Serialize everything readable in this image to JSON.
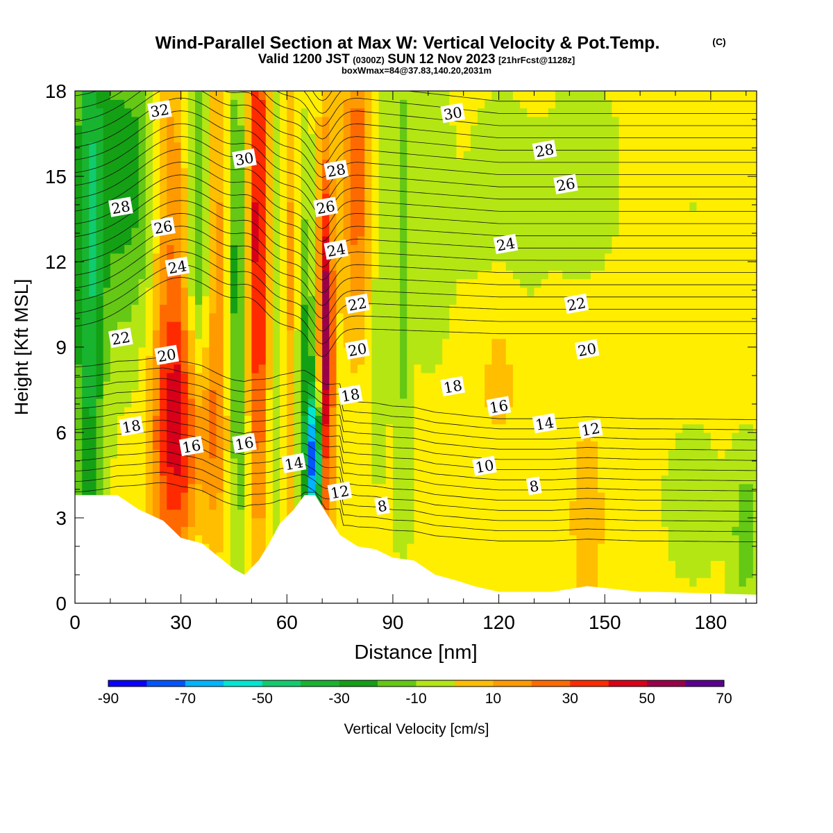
{
  "header": {
    "title": "Wind-Parallel Section at Max W: Vertical Velocity & Pot.Temp.",
    "title_mark": "(C)",
    "valid_prefix": "Valid 1200 JST",
    "valid_utc": "(0300Z)",
    "valid_date": "SUN 12 Nov 2023",
    "valid_fcst": "[21hrFcst@1128z]",
    "box_info": "boxWmax=84@37.83,140.20,2031m"
  },
  "colorbar": {
    "label": "Vertical Velocity [cm/s]",
    "levels": [
      -90,
      -80,
      -70,
      -60,
      -50,
      -40,
      -30,
      -20,
      -10,
      0,
      10,
      20,
      30,
      40,
      50,
      60,
      70
    ],
    "tick_labels": [
      "-90",
      "-70",
      "-50",
      "-30",
      "-10",
      "10",
      "30",
      "50",
      "70"
    ],
    "colors": [
      "#0a00ff",
      "#0055ff",
      "#00b4ff",
      "#00e6d2",
      "#10cc6e",
      "#18b430",
      "#14a014",
      "#64c814",
      "#b4e614",
      "#ffee00",
      "#ffbe00",
      "#ff9a00",
      "#ff6a00",
      "#ff2a00",
      "#d80018",
      "#9a0048",
      "#5a0090"
    ]
  },
  "chart_data": {
    "type": "heatmap",
    "title": "Wind-Parallel Section at Max W: Vertical Velocity & Pot.Temp.",
    "xlabel": "Distance [nm]",
    "ylabel": "Height [Kft MSL]",
    "xlim": [
      0,
      193
    ],
    "ylim": [
      0,
      18
    ],
    "x_ticks": [
      0,
      30,
      60,
      90,
      120,
      150,
      180
    ],
    "y_ticks": [
      0,
      3,
      6,
      9,
      12,
      15,
      18
    ],
    "grid": false,
    "color_variable": "Vertical Velocity [cm/s]",
    "contour_variable": "Potential temperature",
    "terrain_profile": {
      "x": [
        0,
        12,
        18,
        25,
        30,
        36,
        42,
        45,
        48,
        52,
        55,
        58,
        62,
        65,
        68,
        72,
        75,
        80,
        85,
        90,
        96,
        102,
        108,
        113,
        120,
        135,
        145,
        160,
        165,
        193
      ],
      "y": [
        3.8,
        3.8,
        3.3,
        2.9,
        2.3,
        2.1,
        1.5,
        1.2,
        1.0,
        1.5,
        2.1,
        2.8,
        3.3,
        3.8,
        3.8,
        3.0,
        2.4,
        2.0,
        1.9,
        1.6,
        1.5,
        1.0,
        0.8,
        0.6,
        0.4,
        0.4,
        0.6,
        0.4,
        0.4,
        0.3
      ]
    },
    "w_features": [
      {
        "x": 4,
        "y": 12,
        "w": -40,
        "sx": 3,
        "sy": 9
      },
      {
        "x": 12,
        "y": 15,
        "w": -25,
        "sx": 5,
        "sy": 4
      },
      {
        "x": 20,
        "y": 15,
        "w": -15,
        "sx": 4,
        "sy": 5
      },
      {
        "x": 27,
        "y": 10,
        "w": 30,
        "sx": 4,
        "sy": 8
      },
      {
        "x": 33,
        "y": 6,
        "w": 38,
        "sx": 7,
        "sy": 2.8
      },
      {
        "x": 35,
        "y": 12,
        "w": -30,
        "sx": 2.5,
        "sy": 7
      },
      {
        "x": 40,
        "y": 14,
        "w": 22,
        "sx": 2.5,
        "sy": 6
      },
      {
        "x": 46,
        "y": 10,
        "w": -32,
        "sx": 2.2,
        "sy": 7
      },
      {
        "x": 52,
        "y": 13,
        "w": 55,
        "sx": 2.3,
        "sy": 7
      },
      {
        "x": 57,
        "y": 12,
        "w": -20,
        "sx": 2.2,
        "sy": 7
      },
      {
        "x": 61,
        "y": 11,
        "w": 25,
        "sx": 2,
        "sy": 7
      },
      {
        "x": 65,
        "y": 8,
        "w": -30,
        "sx": 2,
        "sy": 5
      },
      {
        "x": 68,
        "y": 5,
        "w": -80,
        "sx": 1.5,
        "sy": 1.8
      },
      {
        "x": 71,
        "y": 9,
        "w": 65,
        "sx": 1.6,
        "sy": 5
      },
      {
        "x": 80,
        "y": 15,
        "w": 35,
        "sx": 3,
        "sy": 4
      },
      {
        "x": 86,
        "y": 13,
        "w": -10,
        "sx": 2.5,
        "sy": 6
      },
      {
        "x": 93,
        "y": 12,
        "w": -15,
        "sx": 1.5,
        "sy": 8
      },
      {
        "x": 100,
        "y": 14,
        "w": -8,
        "sx": 4,
        "sy": 4
      },
      {
        "x": 120,
        "y": 13,
        "w": -5,
        "sx": 10,
        "sy": 5
      },
      {
        "x": 145,
        "y": 15,
        "w": -6,
        "sx": 8,
        "sy": 3
      },
      {
        "x": 175,
        "y": 14,
        "w": -3,
        "sx": 8,
        "sy": 3
      },
      {
        "x": 120,
        "y": 8,
        "w": 14,
        "sx": 4,
        "sy": 2
      },
      {
        "x": 145,
        "y": 3,
        "w": 12,
        "sx": 4,
        "sy": 3
      },
      {
        "x": 175,
        "y": 3.5,
        "w": -8,
        "sx": 6,
        "sy": 2
      },
      {
        "x": 190,
        "y": 2.5,
        "w": -20,
        "sx": 3,
        "sy": 2
      }
    ],
    "theta_levels": [
      8,
      10,
      12,
      14,
      16,
      18,
      20,
      22,
      24,
      26,
      28,
      30,
      32
    ],
    "theta_labels": [
      {
        "text": "32",
        "x": 24,
        "y": 17.3
      },
      {
        "text": "30",
        "x": 48,
        "y": 15.6
      },
      {
        "text": "30",
        "x": 107,
        "y": 17.2
      },
      {
        "text": "28",
        "x": 13,
        "y": 13.9
      },
      {
        "text": "28",
        "x": 74,
        "y": 15.2
      },
      {
        "text": "28",
        "x": 133,
        "y": 15.9
      },
      {
        "text": "26",
        "x": 25,
        "y": 13.2
      },
      {
        "text": "26",
        "x": 71,
        "y": 13.9
      },
      {
        "text": "26",
        "x": 139,
        "y": 14.7
      },
      {
        "text": "24",
        "x": 29,
        "y": 11.8
      },
      {
        "text": "24",
        "x": 74,
        "y": 12.4
      },
      {
        "text": "24",
        "x": 122,
        "y": 12.6
      },
      {
        "text": "22",
        "x": 13,
        "y": 9.3
      },
      {
        "text": "22",
        "x": 80,
        "y": 10.5
      },
      {
        "text": "22",
        "x": 142,
        "y": 10.5
      },
      {
        "text": "20",
        "x": 26,
        "y": 8.7
      },
      {
        "text": "20",
        "x": 80,
        "y": 8.9
      },
      {
        "text": "20",
        "x": 145,
        "y": 8.9
      },
      {
        "text": "18",
        "x": 16,
        "y": 6.2
      },
      {
        "text": "18",
        "x": 78,
        "y": 7.3
      },
      {
        "text": "18",
        "x": 107,
        "y": 7.6
      },
      {
        "text": "16",
        "x": 33,
        "y": 5.5
      },
      {
        "text": "16",
        "x": 48,
        "y": 5.6
      },
      {
        "text": "16",
        "x": 120,
        "y": 6.9
      },
      {
        "text": "14",
        "x": 62,
        "y": 4.9
      },
      {
        "text": "14",
        "x": 133,
        "y": 6.3
      },
      {
        "text": "12",
        "x": 75,
        "y": 3.9
      },
      {
        "text": "12",
        "x": 146,
        "y": 6.1
      },
      {
        "text": "10",
        "x": 116,
        "y": 4.8
      },
      {
        "text": "8",
        "x": 87,
        "y": 3.4
      },
      {
        "text": "8",
        "x": 130,
        "y": 4.1
      }
    ]
  }
}
